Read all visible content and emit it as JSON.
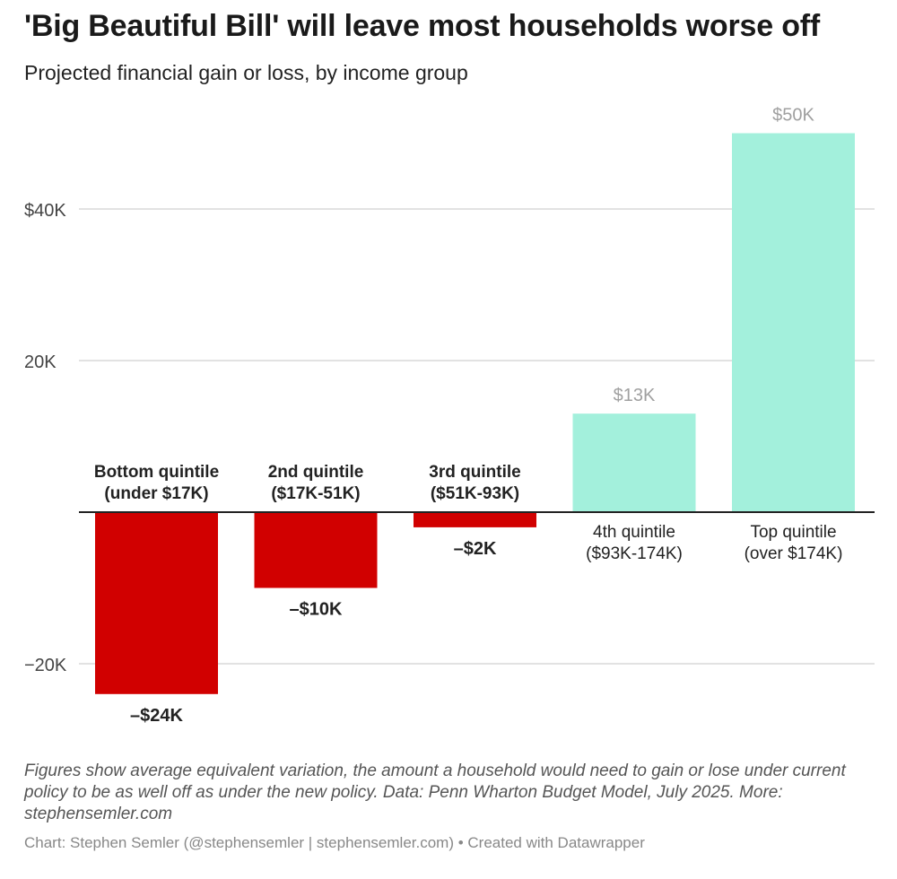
{
  "header": {
    "title": "'Big Beautiful Bill' will leave most households worse off",
    "subtitle": "Projected financial gain or loss, by income group"
  },
  "chart_data": {
    "type": "bar",
    "categories": [
      [
        "Bottom quintile",
        "(under $17K)"
      ],
      [
        "2nd quintile",
        "($17K-51K)"
      ],
      [
        "3rd quintile",
        "($51K-93K)"
      ],
      [
        "4th quintile",
        "($93K-174K)"
      ],
      [
        "Top quintile",
        "(over $174K)"
      ]
    ],
    "values": [
      -24,
      -10,
      -2,
      13,
      50
    ],
    "value_labels": [
      "–$24K",
      "–$10K",
      "–$2K",
      "$13K",
      "$50K"
    ],
    "units": "thousand dollars",
    "ylim": [
      -25,
      50
    ],
    "yticks": [
      {
        "value": 40,
        "label": "$40K"
      },
      {
        "value": 20,
        "label": "20K"
      },
      {
        "value": -20,
        "label": "−20K"
      }
    ],
    "grid": true,
    "colors": {
      "negative": "#d10000",
      "positive": "#a3f0dc",
      "positive_label": "#a0a0a0",
      "negative_label": "#222222",
      "gridline": "#d0d0d0",
      "zero_line": "#222222"
    }
  },
  "footer": {
    "notes": "Figures show average equivalent variation, the amount a household would need to gain or lose under current policy to be as well off as under the new policy. Data: Penn Wharton Budget Model, July 2025. More: stephensemler.com",
    "credit": "Chart: Stephen Semler (@stephensemler | stephensemler.com) • Created with Datawrapper"
  }
}
